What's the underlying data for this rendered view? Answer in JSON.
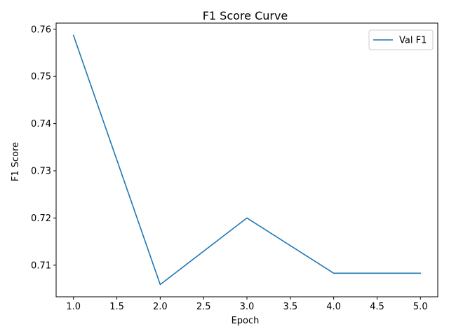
{
  "chart_data": {
    "type": "line",
    "title": "F1 Score Curve",
    "xlabel": "Epoch",
    "ylabel": "F1 Score",
    "x": [
      1,
      2,
      3,
      4,
      5
    ],
    "series": [
      {
        "name": "Val F1",
        "values": [
          0.7587,
          0.7059,
          0.72,
          0.7083,
          0.7083
        ],
        "color": "#1f77b4"
      }
    ],
    "xlim": [
      0.8,
      5.2
    ],
    "ylim": [
      0.7033,
      0.7613
    ],
    "xticks": [
      1.0,
      1.5,
      2.0,
      2.5,
      3.0,
      3.5,
      4.0,
      4.5,
      5.0
    ],
    "xtick_labels": [
      "1.0",
      "1.5",
      "2.0",
      "2.5",
      "3.0",
      "3.5",
      "4.0",
      "4.5",
      "5.0"
    ],
    "yticks": [
      0.71,
      0.72,
      0.73,
      0.74,
      0.75,
      0.76
    ],
    "ytick_labels": [
      "0.71",
      "0.72",
      "0.73",
      "0.74",
      "0.75",
      "0.76"
    ],
    "grid": false,
    "legend_position": "top-right"
  }
}
